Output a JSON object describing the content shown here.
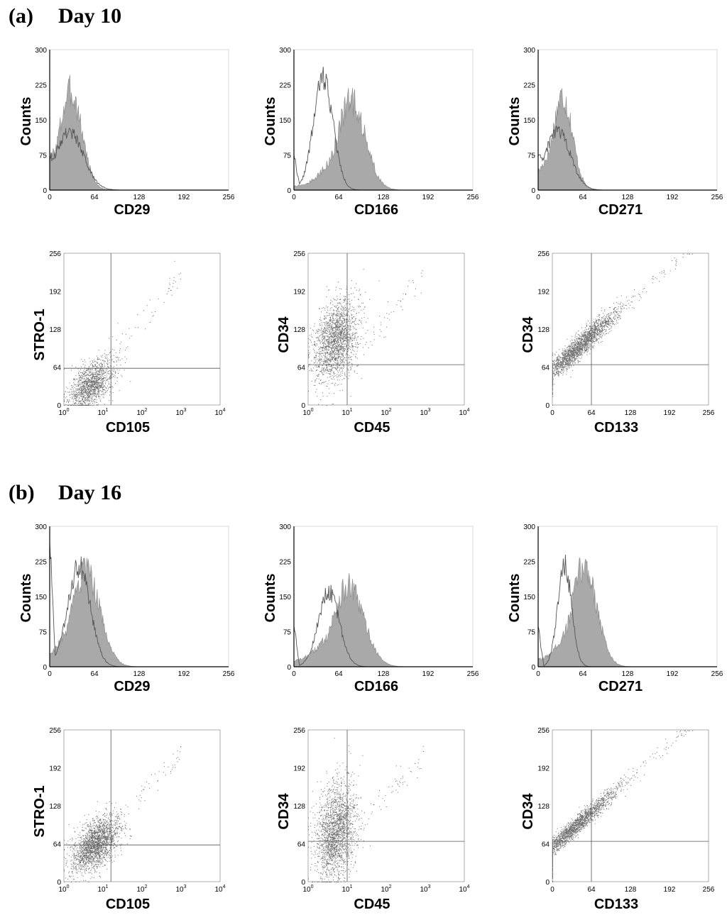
{
  "sections": [
    {
      "tag": "(a)",
      "title": "Day 10",
      "histograms": [
        {
          "marker": "CD29",
          "open_mode": 28,
          "open_sd": 20,
          "open_peak": 125,
          "fill_mode": 30,
          "fill_sd": 16,
          "fill_peak": 210,
          "fill_tail": 0.12,
          "open_start": 78
        },
        {
          "marker": "CD166",
          "open_mode": 42,
          "open_sd": 14,
          "open_peak": 240,
          "fill_mode": 82,
          "fill_sd": 20,
          "fill_peak": 190,
          "fill_tail": 0.08,
          "open_start": 80
        },
        {
          "marker": "CD271",
          "open_mode": 28,
          "open_sd": 18,
          "open_peak": 125,
          "fill_mode": 35,
          "fill_sd": 14,
          "fill_peak": 200,
          "fill_tail": 0.15,
          "open_start": 80
        }
      ],
      "scatters": [
        {
          "x_label": "CD105",
          "y_label": "STRO-1",
          "x_scale": "log",
          "cx": 5,
          "cy": 35,
          "spread_x": 0.28,
          "spread_y": 18,
          "tail_slope": 1.0,
          "quad_x": 16,
          "quad_y": 62,
          "density": 0.55
        },
        {
          "x_label": "CD45",
          "y_label": "CD34",
          "x_scale": "log",
          "cx": 5,
          "cy": 110,
          "spread_x": 0.28,
          "spread_y": 32,
          "tail_slope": 1.0,
          "quad_x": 10,
          "quad_y": 68,
          "density": 0.75
        },
        {
          "x_label": "CD133",
          "y_label": "CD34",
          "x_scale": "linear",
          "cx": 45,
          "cy": 100,
          "spread_x": 30,
          "spread_y": 10,
          "tail_slope": 1.0,
          "quad_x": 64,
          "quad_y": 68,
          "density": 0.8
        }
      ]
    },
    {
      "tag": "(b)",
      "title": "Day 16",
      "histograms": [
        {
          "marker": "CD29",
          "open_mode": 42,
          "open_sd": 16,
          "open_peak": 215,
          "fill_mode": 52,
          "fill_sd": 20,
          "fill_peak": 200,
          "fill_tail": 0.05,
          "open_start": 280
        },
        {
          "marker": "CD166",
          "open_mode": 50,
          "open_sd": 15,
          "open_peak": 160,
          "fill_mode": 78,
          "fill_sd": 22,
          "fill_peak": 170,
          "fill_tail": 0.1,
          "open_start": 90
        },
        {
          "marker": "CD271",
          "open_mode": 38,
          "open_sd": 10,
          "open_peak": 215,
          "fill_mode": 66,
          "fill_sd": 18,
          "fill_peak": 215,
          "fill_tail": 0.1,
          "open_start": 90
        }
      ],
      "scatters": [
        {
          "x_label": "CD105",
          "y_label": "STRO-1",
          "x_scale": "log",
          "cx": 6,
          "cy": 62,
          "spread_x": 0.3,
          "spread_y": 20,
          "tail_slope": 1.0,
          "quad_x": 16,
          "quad_y": 62,
          "density": 0.8
        },
        {
          "x_label": "CD45",
          "y_label": "CD34",
          "x_scale": "log",
          "cx": 5,
          "cy": 85,
          "spread_x": 0.25,
          "spread_y": 40,
          "tail_slope": 1.0,
          "quad_x": 10,
          "quad_y": 68,
          "density": 0.8
        },
        {
          "x_label": "CD133",
          "y_label": "CD34",
          "x_scale": "linear",
          "cx": 35,
          "cy": 95,
          "spread_x": 35,
          "spread_y": 8,
          "tail_slope": 1.0,
          "quad_x": 64,
          "quad_y": 68,
          "density": 0.75
        }
      ]
    }
  ],
  "hist_axes": {
    "y_label": "Counts",
    "y_ticks": [
      "0",
      "75",
      "150",
      "225",
      "300"
    ],
    "x_ticks": [
      "0",
      "64",
      "128",
      "192",
      "256"
    ],
    "xlim": [
      0,
      256
    ],
    "ylim": [
      0,
      300
    ]
  },
  "scatter_axes": {
    "y_ticks": [
      "0",
      "64",
      "128",
      "192",
      "256"
    ],
    "linear_x_ticks": [
      "0",
      "64",
      "128",
      "192",
      "256"
    ],
    "log_x_ticks": [
      {
        "base": "10",
        "exp": "0"
      },
      {
        "base": "10",
        "exp": "1"
      },
      {
        "base": "10",
        "exp": "2"
      },
      {
        "base": "10",
        "exp": "3"
      },
      {
        "base": "10",
        "exp": "4"
      }
    ],
    "ylim": [
      0,
      256
    ],
    "linear_xlim": [
      0,
      256
    ],
    "log_xlim_decades": [
      0,
      4
    ]
  },
  "chart_data": [
    {
      "type": "histogram",
      "panel": "a-CD29",
      "xlabel": "CD29",
      "ylabel": "Counts",
      "xlim": [
        0,
        256
      ],
      "ylim": [
        0,
        300
      ],
      "series": [
        {
          "style": "open",
          "peak_x": 28,
          "peak_y": 125
        },
        {
          "style": "filled",
          "peak_x": 30,
          "peak_y": 210
        }
      ]
    },
    {
      "type": "histogram",
      "panel": "a-CD166",
      "xlabel": "CD166",
      "ylabel": "Counts",
      "xlim": [
        0,
        256
      ],
      "ylim": [
        0,
        300
      ],
      "series": [
        {
          "style": "open",
          "peak_x": 42,
          "peak_y": 240
        },
        {
          "style": "filled",
          "peak_x": 82,
          "peak_y": 190
        }
      ]
    },
    {
      "type": "histogram",
      "panel": "a-CD271",
      "xlabel": "CD271",
      "ylabel": "Counts",
      "xlim": [
        0,
        256
      ],
      "ylim": [
        0,
        300
      ],
      "series": [
        {
          "style": "open",
          "peak_x": 28,
          "peak_y": 125
        },
        {
          "style": "filled",
          "peak_x": 35,
          "peak_y": 200
        }
      ]
    },
    {
      "type": "scatter",
      "panel": "a-CD105-STRO-1",
      "xlabel": "CD105",
      "ylabel": "STRO-1",
      "x_scale": "log",
      "xlim": [
        1,
        10000
      ],
      "ylim": [
        0,
        256
      ]
    },
    {
      "type": "scatter",
      "panel": "a-CD45-CD34",
      "xlabel": "CD45",
      "ylabel": "CD34",
      "x_scale": "log",
      "xlim": [
        1,
        10000
      ],
      "ylim": [
        0,
        256
      ]
    },
    {
      "type": "scatter",
      "panel": "a-CD133-CD34",
      "xlabel": "CD133",
      "ylabel": "CD34",
      "x_scale": "linear",
      "xlim": [
        0,
        256
      ],
      "ylim": [
        0,
        256
      ]
    },
    {
      "type": "histogram",
      "panel": "b-CD29",
      "xlabel": "CD29",
      "ylabel": "Counts",
      "xlim": [
        0,
        256
      ],
      "ylim": [
        0,
        300
      ],
      "series": [
        {
          "style": "open",
          "peak_x": 42,
          "peak_y": 215
        },
        {
          "style": "filled",
          "peak_x": 52,
          "peak_y": 200
        }
      ]
    },
    {
      "type": "histogram",
      "panel": "b-CD166",
      "xlabel": "CD166",
      "ylabel": "Counts",
      "xlim": [
        0,
        256
      ],
      "ylim": [
        0,
        300
      ],
      "series": [
        {
          "style": "open",
          "peak_x": 50,
          "peak_y": 160
        },
        {
          "style": "filled",
          "peak_x": 78,
          "peak_y": 170
        }
      ]
    },
    {
      "type": "histogram",
      "panel": "b-CD271",
      "xlabel": "CD271",
      "ylabel": "Counts",
      "xlim": [
        0,
        256
      ],
      "ylim": [
        0,
        300
      ],
      "series": [
        {
          "style": "open",
          "peak_x": 38,
          "peak_y": 215
        },
        {
          "style": "filled",
          "peak_x": 66,
          "peak_y": 215
        }
      ]
    },
    {
      "type": "scatter",
      "panel": "b-CD105-STRO-1",
      "xlabel": "CD105",
      "ylabel": "STRO-1",
      "x_scale": "log",
      "xlim": [
        1,
        10000
      ],
      "ylim": [
        0,
        256
      ]
    },
    {
      "type": "scatter",
      "panel": "b-CD45-CD34",
      "xlabel": "CD45",
      "ylabel": "CD34",
      "x_scale": "log",
      "xlim": [
        1,
        10000
      ],
      "ylim": [
        0,
        256
      ]
    },
    {
      "type": "scatter",
      "panel": "b-CD133-CD34",
      "xlabel": "CD133",
      "ylabel": "CD34",
      "x_scale": "linear",
      "xlim": [
        0,
        256
      ],
      "ylim": [
        0,
        256
      ]
    }
  ]
}
